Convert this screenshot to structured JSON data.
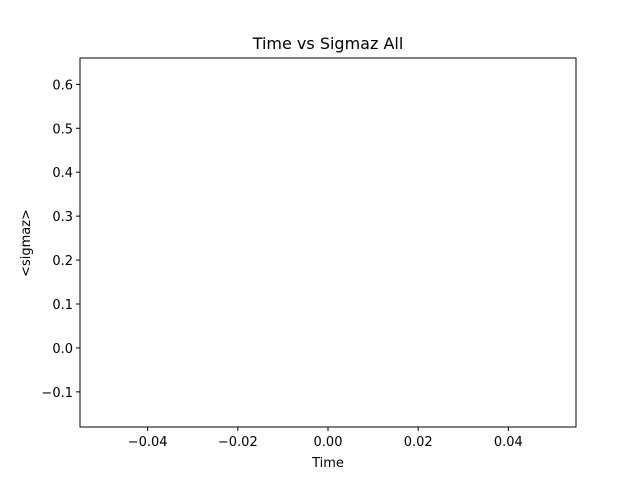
{
  "chart_data": {
    "type": "scatter",
    "title": "Time vs Sigmaz All",
    "xlabel": "Time",
    "ylabel": "<sigmaz>",
    "x": [],
    "series": [
      {
        "values": []
      }
    ],
    "xlim": [
      -0.055,
      0.055
    ],
    "ylim": [
      -0.18,
      0.66
    ],
    "xticks": [
      -0.04,
      -0.02,
      0.0,
      0.02,
      0.04
    ],
    "xtick_labels": [
      "−0.04",
      "−0.02",
      "0.00",
      "0.02",
      "0.04"
    ],
    "yticks": [
      -0.1,
      0.0,
      0.1,
      0.2,
      0.3,
      0.4,
      0.5,
      0.6
    ],
    "ytick_labels": [
      "−0.1",
      "0.0",
      "0.1",
      "0.2",
      "0.3",
      "0.4",
      "0.5",
      "0.6"
    ],
    "grid": false,
    "legend": "none"
  },
  "colors": {
    "axes": "#000000",
    "background": "#ffffff"
  }
}
